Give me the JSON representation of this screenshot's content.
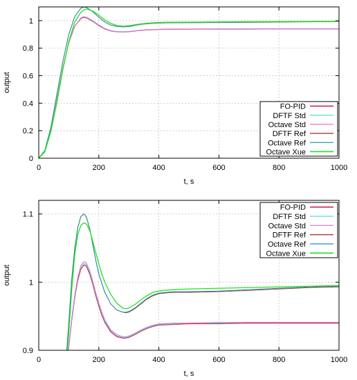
{
  "chart_data": [
    {
      "type": "line",
      "xlabel": "t, s",
      "ylabel": "output",
      "xlim": [
        0,
        1000
      ],
      "ylim": [
        0,
        1.1
      ],
      "xticks": [
        "0",
        "200",
        "400",
        "600",
        "800",
        "1000"
      ],
      "yticks": [
        "0",
        "0.2",
        "0.4",
        "0.6",
        "0.8",
        "1"
      ],
      "grid": true,
      "legend_position": "bottom-right",
      "series": [
        {
          "name": "FO-PID",
          "color": "#d62050",
          "width": 1.3,
          "x": [
            0,
            20,
            40,
            60,
            80,
            100,
            120,
            140,
            150,
            160,
            180,
            200,
            220,
            240,
            260,
            280,
            300,
            340,
            380,
            420,
            480,
            550,
            650,
            750,
            850,
            1000
          ],
          "y": [
            0,
            0.05,
            0.2,
            0.42,
            0.65,
            0.84,
            0.96,
            1.015,
            1.025,
            1.02,
            0.995,
            0.965,
            0.94,
            0.925,
            0.92,
            0.918,
            0.92,
            0.93,
            0.935,
            0.937,
            0.938,
            0.939,
            0.939,
            0.94,
            0.94,
            0.94
          ]
        },
        {
          "name": "DFTF Std",
          "color": "#40e8d0",
          "width": 1.0,
          "x": [
            0,
            20,
            40,
            60,
            80,
            100,
            120,
            140,
            150,
            160,
            180,
            200,
            220,
            240,
            260,
            280,
            300,
            340,
            380,
            420,
            480,
            550,
            650,
            750,
            850,
            1000
          ],
          "y": [
            0,
            0.05,
            0.2,
            0.42,
            0.65,
            0.84,
            0.96,
            1.018,
            1.028,
            1.023,
            0.998,
            0.968,
            0.942,
            0.926,
            0.921,
            0.919,
            0.921,
            0.931,
            0.936,
            0.938,
            0.939,
            0.94,
            0.94,
            0.941,
            0.941,
            0.941
          ]
        },
        {
          "name": "Octave Std",
          "color": "#e080e0",
          "width": 1.0,
          "x": [
            0,
            20,
            40,
            60,
            80,
            100,
            120,
            140,
            150,
            160,
            180,
            200,
            220,
            240,
            260,
            280,
            300,
            340,
            380,
            420,
            480,
            550,
            650,
            750,
            850,
            1000
          ],
          "y": [
            0,
            0.05,
            0.2,
            0.42,
            0.65,
            0.84,
            0.96,
            1.02,
            1.03,
            1.025,
            1.0,
            0.97,
            0.944,
            0.928,
            0.922,
            0.92,
            0.922,
            0.932,
            0.937,
            0.939,
            0.94,
            0.94,
            0.941,
            0.941,
            0.941,
            0.941
          ]
        },
        {
          "name": "DFTF Ref",
          "color": "#a83838",
          "width": 1.0,
          "x": [
            0,
            20,
            40,
            60,
            80,
            100,
            120,
            140,
            150,
            160,
            180,
            200,
            220,
            240,
            260,
            280,
            300,
            320,
            340,
            380,
            420,
            480,
            550,
            650,
            750,
            850,
            1000
          ],
          "y": [
            0,
            0.055,
            0.22,
            0.46,
            0.7,
            0.9,
            1.03,
            1.09,
            1.1,
            1.095,
            1.065,
            1.025,
            0.99,
            0.968,
            0.958,
            0.955,
            0.957,
            0.965,
            0.973,
            0.981,
            0.984,
            0.985,
            0.986,
            0.987,
            0.989,
            0.991,
            0.993
          ]
        },
        {
          "name": "Octave Ref",
          "color": "#20a0a0",
          "width": 1.0,
          "x": [
            0,
            20,
            40,
            60,
            80,
            100,
            120,
            140,
            150,
            160,
            180,
            200,
            220,
            240,
            260,
            280,
            300,
            320,
            340,
            380,
            420,
            480,
            550,
            650,
            750,
            850,
            1000
          ],
          "y": [
            0,
            0.055,
            0.22,
            0.46,
            0.7,
            0.9,
            1.03,
            1.09,
            1.1,
            1.095,
            1.065,
            1.025,
            0.99,
            0.968,
            0.958,
            0.956,
            0.958,
            0.966,
            0.974,
            0.982,
            0.985,
            0.986,
            0.987,
            0.988,
            0.99,
            0.992,
            0.994
          ]
        },
        {
          "name": "Octave Xue",
          "color": "#22e020",
          "width": 1.3,
          "x": [
            0,
            20,
            40,
            60,
            80,
            100,
            120,
            140,
            150,
            160,
            180,
            200,
            220,
            240,
            260,
            280,
            300,
            320,
            340,
            380,
            420,
            480,
            550,
            650,
            750,
            850,
            1000
          ],
          "y": [
            0,
            0.045,
            0.19,
            0.4,
            0.64,
            0.85,
            0.99,
            1.06,
            1.078,
            1.085,
            1.07,
            1.04,
            1.005,
            0.98,
            0.965,
            0.96,
            0.963,
            0.97,
            0.977,
            0.985,
            0.988,
            0.989,
            0.99,
            0.992,
            0.993,
            0.994,
            0.995
          ]
        }
      ]
    },
    {
      "type": "line",
      "xlabel": "t, s",
      "ylabel": "output",
      "xlim": [
        0,
        1000
      ],
      "ylim": [
        0.9,
        1.12
      ],
      "xticks": [
        "0",
        "200",
        "400",
        "600",
        "800",
        "1000"
      ],
      "yticks": [
        "0.9",
        "1",
        "1.1"
      ],
      "grid": true,
      "legend_position": "top-right",
      "series": [
        {
          "name": "FO-PID",
          "color": "#d62050",
          "width": 1.3,
          "x": [
            90,
            100,
            110,
            120,
            130,
            140,
            150,
            155,
            160,
            170,
            180,
            190,
            200,
            210,
            220,
            240,
            260,
            280,
            290,
            300,
            320,
            340,
            360,
            380,
            400,
            450,
            500,
            600,
            700,
            800,
            900,
            1000
          ],
          "y": [
            0.86,
            0.905,
            0.945,
            0.978,
            1.003,
            1.019,
            1.025,
            1.025,
            1.022,
            1.012,
            0.997,
            0.98,
            0.965,
            0.952,
            0.941,
            0.927,
            0.92,
            0.918,
            0.918,
            0.919,
            0.923,
            0.928,
            0.932,
            0.935,
            0.937,
            0.938,
            0.939,
            0.939,
            0.94,
            0.94,
            0.94,
            0.94
          ]
        },
        {
          "name": "DFTF Std",
          "color": "#40e8d0",
          "width": 1.0,
          "x": [
            90,
            100,
            110,
            120,
            130,
            140,
            150,
            155,
            160,
            170,
            180,
            190,
            200,
            210,
            220,
            240,
            260,
            280,
            290,
            300,
            320,
            340,
            360,
            380,
            400,
            450,
            500,
            600,
            700,
            800,
            900,
            1000
          ],
          "y": [
            0.86,
            0.906,
            0.947,
            0.98,
            1.006,
            1.022,
            1.028,
            1.028,
            1.025,
            1.015,
            1.0,
            0.983,
            0.968,
            0.955,
            0.943,
            0.929,
            0.922,
            0.919,
            0.919,
            0.92,
            0.924,
            0.929,
            0.933,
            0.936,
            0.938,
            0.939,
            0.94,
            0.94,
            0.941,
            0.941,
            0.941,
            0.941
          ]
        },
        {
          "name": "Octave Std",
          "color": "#e080e0",
          "width": 1.0,
          "x": [
            90,
            100,
            110,
            120,
            130,
            140,
            150,
            155,
            160,
            170,
            180,
            190,
            200,
            210,
            220,
            240,
            260,
            280,
            290,
            300,
            320,
            340,
            360,
            380,
            400,
            450,
            500,
            600,
            700,
            800,
            900,
            1000
          ],
          "y": [
            0.86,
            0.907,
            0.948,
            0.982,
            1.008,
            1.024,
            1.03,
            1.03,
            1.027,
            1.017,
            1.002,
            0.985,
            0.97,
            0.956,
            0.945,
            0.93,
            0.923,
            0.92,
            0.92,
            0.921,
            0.925,
            0.93,
            0.934,
            0.937,
            0.939,
            0.94,
            0.94,
            0.941,
            0.941,
            0.941,
            0.941,
            0.941
          ]
        },
        {
          "name": "DFTF Ref",
          "color": "#a83838",
          "width": 1.0,
          "x": [
            90,
            100,
            110,
            120,
            130,
            140,
            150,
            155,
            160,
            170,
            180,
            190,
            200,
            220,
            240,
            260,
            280,
            290,
            300,
            320,
            340,
            360,
            380,
            400,
            420,
            450,
            500,
            600,
            700,
            800,
            900,
            1000
          ],
          "y": [
            0.88,
            0.94,
            1.005,
            1.05,
            1.08,
            1.096,
            1.1,
            1.098,
            1.094,
            1.078,
            1.055,
            1.032,
            1.012,
            0.985,
            0.968,
            0.959,
            0.956,
            0.955,
            0.956,
            0.961,
            0.968,
            0.975,
            0.98,
            0.983,
            0.984,
            0.985,
            0.985,
            0.986,
            0.988,
            0.99,
            0.992,
            0.993
          ]
        },
        {
          "name": "Octave Ref",
          "color": "#2090b0",
          "width": 1.0,
          "x": [
            90,
            100,
            110,
            120,
            130,
            140,
            150,
            155,
            160,
            170,
            180,
            190,
            200,
            220,
            240,
            260,
            280,
            290,
            300,
            320,
            340,
            360,
            380,
            400,
            420,
            450,
            500,
            600,
            700,
            800,
            900,
            1000
          ],
          "y": [
            0.88,
            0.94,
            1.005,
            1.05,
            1.08,
            1.096,
            1.1,
            1.098,
            1.094,
            1.078,
            1.055,
            1.032,
            1.012,
            0.985,
            0.968,
            0.959,
            0.956,
            0.956,
            0.957,
            0.962,
            0.969,
            0.976,
            0.981,
            0.984,
            0.985,
            0.986,
            0.986,
            0.987,
            0.989,
            0.991,
            0.993,
            0.994
          ]
        },
        {
          "name": "Octave Xue",
          "color": "#22e020",
          "width": 1.3,
          "x": [
            90,
            100,
            110,
            120,
            130,
            140,
            150,
            160,
            170,
            180,
            190,
            200,
            210,
            220,
            240,
            260,
            280,
            290,
            300,
            320,
            340,
            360,
            380,
            400,
            420,
            450,
            500,
            600,
            700,
            800,
            900,
            1000
          ],
          "y": [
            0.87,
            0.925,
            0.99,
            1.04,
            1.07,
            1.083,
            1.087,
            1.085,
            1.075,
            1.06,
            1.043,
            1.027,
            1.012,
            1.0,
            0.982,
            0.969,
            0.962,
            0.961,
            0.962,
            0.967,
            0.974,
            0.98,
            0.985,
            0.987,
            0.988,
            0.989,
            0.99,
            0.991,
            0.992,
            0.993,
            0.994,
            0.995
          ]
        }
      ]
    }
  ]
}
